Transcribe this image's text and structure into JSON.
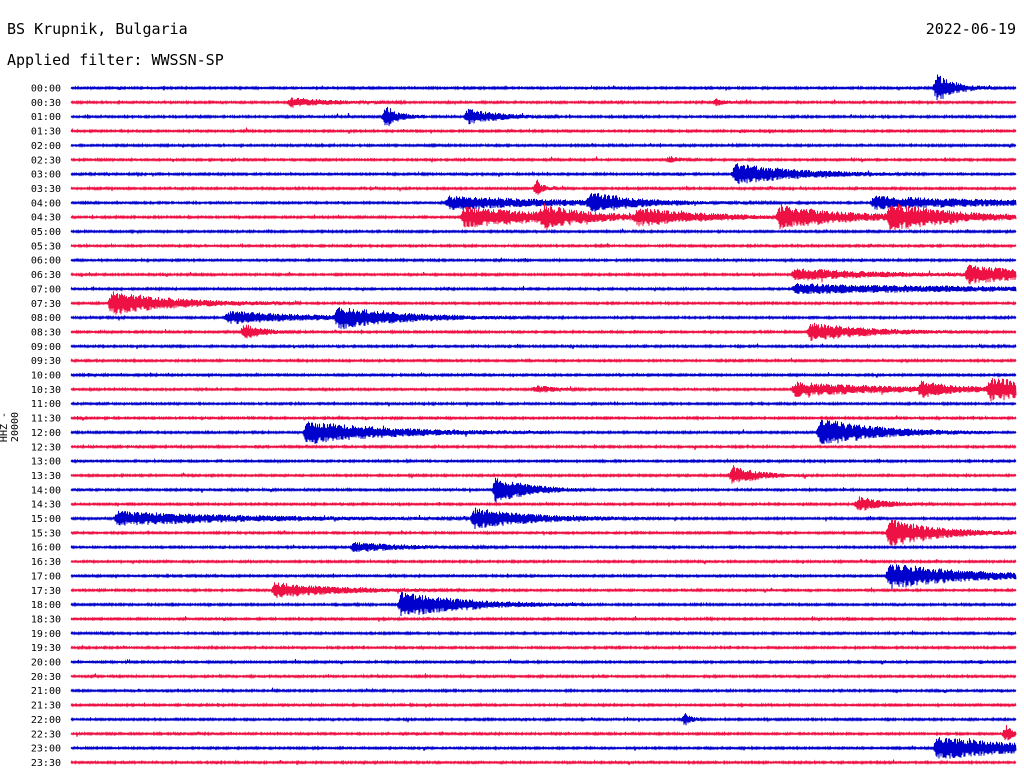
{
  "header": {
    "station": "BS Krupnik, Bulgaria",
    "date": "2022-06-19",
    "filter": "Applied filter: WWSSN-SP"
  },
  "chart_data": {
    "type": "line",
    "subtype": "helicorder",
    "ylabel": "HHZ - 20000",
    "time_labels": [
      "00:00",
      "00:30",
      "01:00",
      "01:30",
      "02:00",
      "02:30",
      "03:00",
      "03:30",
      "04:00",
      "04:30",
      "05:00",
      "05:30",
      "06:00",
      "06:30",
      "07:00",
      "07:30",
      "08:00",
      "08:30",
      "09:00",
      "09:30",
      "10:00",
      "10:30",
      "11:00",
      "11:30",
      "12:00",
      "12:30",
      "13:00",
      "13:30",
      "14:00",
      "14:30",
      "15:00",
      "15:30",
      "16:00",
      "16:30",
      "17:00",
      "17:30",
      "18:00",
      "18:30",
      "19:00",
      "19:30",
      "20:00",
      "20:30",
      "21:00",
      "21:30",
      "22:00",
      "22:30",
      "23:00",
      "23:30"
    ],
    "colors": [
      "#0000cc",
      "#ee1144"
    ],
    "trace_minutes": 30,
    "events": [
      {
        "row": 0,
        "minute": 27.5,
        "amp": 1.0,
        "dur": 0.6
      },
      {
        "row": 1,
        "minute": 7.0,
        "amp": 0.35,
        "dur": 1.2
      },
      {
        "row": 1,
        "minute": 20.5,
        "amp": 0.25,
        "dur": 0.3
      },
      {
        "row": 2,
        "minute": 10.0,
        "amp": 0.8,
        "dur": 0.4
      },
      {
        "row": 2,
        "minute": 12.6,
        "amp": 0.55,
        "dur": 1.0
      },
      {
        "row": 5,
        "minute": 19.0,
        "amp": 0.25,
        "dur": 0.3
      },
      {
        "row": 6,
        "minute": 21.1,
        "amp": 0.75,
        "dur": 2.0
      },
      {
        "row": 7,
        "minute": 14.8,
        "amp": 0.6,
        "dur": 0.2
      },
      {
        "row": 8,
        "minute": 12.0,
        "amp": 0.5,
        "dur": 3.5
      },
      {
        "row": 8,
        "minute": 16.5,
        "amp": 0.65,
        "dur": 1.2
      },
      {
        "row": 8,
        "minute": 25.5,
        "amp": 0.45,
        "dur": 4.5
      },
      {
        "row": 9,
        "minute": 12.5,
        "amp": 0.75,
        "dur": 3.0
      },
      {
        "row": 9,
        "minute": 15.0,
        "amp": 0.65,
        "dur": 1.0
      },
      {
        "row": 9,
        "minute": 18.0,
        "amp": 0.55,
        "dur": 2.0
      },
      {
        "row": 9,
        "minute": 22.5,
        "amp": 0.75,
        "dur": 2.5
      },
      {
        "row": 9,
        "minute": 26.0,
        "amp": 0.85,
        "dur": 2.0
      },
      {
        "row": 13,
        "minute": 23.0,
        "amp": 0.45,
        "dur": 2.5
      },
      {
        "row": 13,
        "minute": 28.5,
        "amp": 0.6,
        "dur": 2.5
      },
      {
        "row": 14,
        "minute": 23.0,
        "amp": 0.35,
        "dur": 6.0
      },
      {
        "row": 15,
        "minute": 1.3,
        "amp": 0.85,
        "dur": 2.0
      },
      {
        "row": 16,
        "minute": 5.0,
        "amp": 0.45,
        "dur": 2.5
      },
      {
        "row": 16,
        "minute": 8.5,
        "amp": 0.7,
        "dur": 2.0
      },
      {
        "row": 17,
        "minute": 5.5,
        "amp": 0.55,
        "dur": 0.6
      },
      {
        "row": 17,
        "minute": 23.5,
        "amp": 0.65,
        "dur": 1.8
      },
      {
        "row": 21,
        "minute": 14.8,
        "amp": 0.3,
        "dur": 0.5
      },
      {
        "row": 21,
        "minute": 23.0,
        "amp": 0.5,
        "dur": 3.0
      },
      {
        "row": 21,
        "minute": 27.0,
        "amp": 0.45,
        "dur": 1.0
      },
      {
        "row": 21,
        "minute": 29.2,
        "amp": 0.75,
        "dur": 2.5
      },
      {
        "row": 24,
        "minute": 7.5,
        "amp": 0.85,
        "dur": 2.5
      },
      {
        "row": 24,
        "minute": 23.8,
        "amp": 1.0,
        "dur": 1.8
      },
      {
        "row": 27,
        "minute": 21.0,
        "amp": 0.7,
        "dur": 0.8
      },
      {
        "row": 28,
        "minute": 13.5,
        "amp": 1.0,
        "dur": 1.0
      },
      {
        "row": 29,
        "minute": 25.0,
        "amp": 0.55,
        "dur": 0.8
      },
      {
        "row": 30,
        "minute": 1.5,
        "amp": 0.5,
        "dur": 4.0
      },
      {
        "row": 30,
        "minute": 12.8,
        "amp": 0.7,
        "dur": 2.0
      },
      {
        "row": 31,
        "minute": 26.0,
        "amp": 1.0,
        "dur": 1.5
      },
      {
        "row": 32,
        "minute": 9.0,
        "amp": 0.35,
        "dur": 1.5
      },
      {
        "row": 34,
        "minute": 26.0,
        "amp": 0.9,
        "dur": 2.5
      },
      {
        "row": 35,
        "minute": 6.5,
        "amp": 0.55,
        "dur": 2.0
      },
      {
        "row": 36,
        "minute": 10.5,
        "amp": 0.9,
        "dur": 2.0
      },
      {
        "row": 44,
        "minute": 19.5,
        "amp": 0.45,
        "dur": 0.2
      },
      {
        "row": 45,
        "minute": 29.7,
        "amp": 0.6,
        "dur": 0.2
      },
      {
        "row": 46,
        "minute": 27.5,
        "amp": 0.8,
        "dur": 3.0
      }
    ]
  }
}
